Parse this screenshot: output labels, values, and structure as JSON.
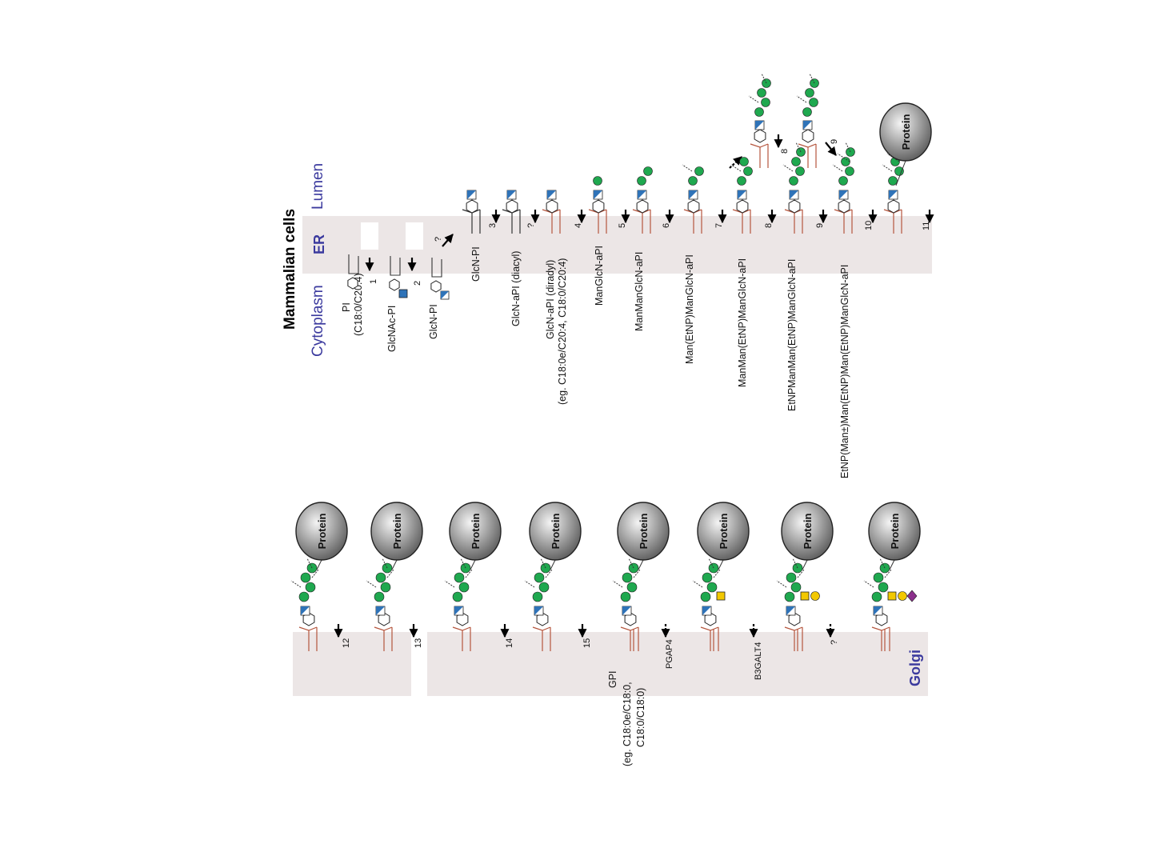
{
  "title": "Mammalian cells",
  "regions": {
    "cytoplasm": "Cytoplasm",
    "er": "ER",
    "lumen": "Lumen",
    "golgi": "Golgi"
  },
  "protein_label": "Protein",
  "er_labels": [
    {
      "text": "PI"
    },
    {
      "text": "(C18:0/C20:4)"
    },
    {
      "text": "GlcNAc-PI"
    },
    {
      "text": "GlcN-PI"
    },
    {
      "text": "GlcN-PI"
    },
    {
      "text": "GlcN-aPI (diacyl)"
    },
    {
      "text": "GlcN-aPI (diradyl)"
    },
    {
      "text": "(eg. C18:0e/C20:4, C18:0/C20:4)"
    },
    {
      "text": "ManGlcN-aPI"
    },
    {
      "text": "ManManGlcN-aPI"
    },
    {
      "text": "Man(EtNP)ManGlcN-aPI"
    },
    {
      "text": "ManMan(EtNP)ManGlcN-aPI"
    },
    {
      "text": "EtNPManMan(EtNP)ManGlcN-aPI"
    },
    {
      "text": "EtNP(Man±)Man(EtNP)Man(EtNP)ManGlcN-aPI"
    }
  ],
  "er_steps": [
    "1",
    "2",
    "?",
    "3",
    "?",
    "4",
    "5",
    "6",
    "7",
    "8",
    "9",
    "10",
    "11",
    "8",
    "9"
  ],
  "golgi_steps": [
    "12",
    "13",
    "14",
    "15",
    "PGAP4",
    "B3GALT4",
    "?"
  ],
  "golgi_labels": [
    {
      "text": "GPI"
    },
    {
      "text": "(eg. C18:0e/C18:0,"
    },
    {
      "text": "C18:0/C18:0)"
    }
  ],
  "colors": {
    "band": "#ece6e6",
    "glcnac_blue": "#2f73b8",
    "mannose_green": "#1fa84f",
    "galnac_yellow": "#f2c800",
    "galactose_yellow": "#f2c800",
    "sialic_purple": "#8b2f8b",
    "lipid_red": "#b5553d",
    "region_text": "#3b3a9e"
  }
}
